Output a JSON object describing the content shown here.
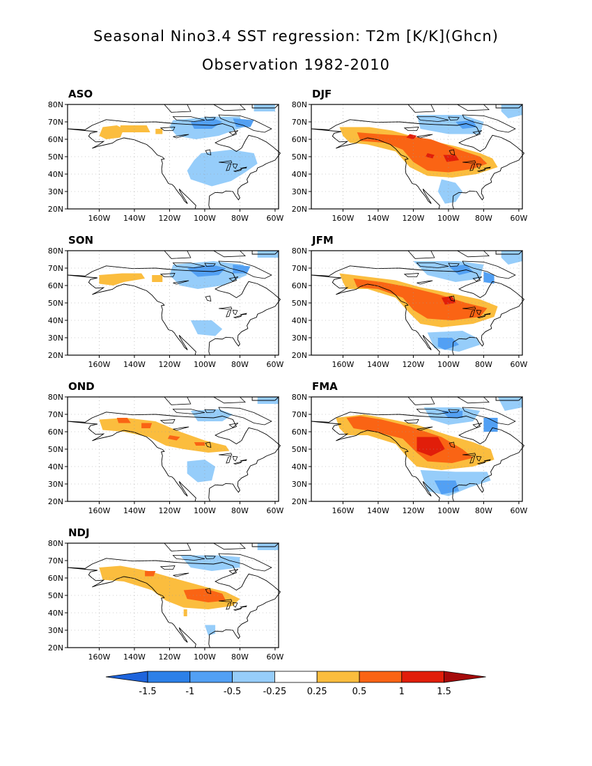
{
  "title": "Seasonal Nino3.4 SST regression: T2m [K/K](Ghcn)",
  "subtitle": "Observation 1982-2010",
  "lat_ticks": [
    "80N",
    "70N",
    "60N",
    "50N",
    "40N",
    "30N",
    "20N"
  ],
  "lon_ticks": [
    "160W",
    "140W",
    "120W",
    "100W",
    "80W",
    "60W"
  ],
  "lat_range": [
    20,
    80
  ],
  "lon_range": [
    -178,
    -58
  ],
  "panels": [
    {
      "id": "ASO",
      "label": "ASO"
    },
    {
      "id": "DJF",
      "label": "DJF"
    },
    {
      "id": "SON",
      "label": "SON"
    },
    {
      "id": "JFM",
      "label": "JFM"
    },
    {
      "id": "OND",
      "label": "OND"
    },
    {
      "id": "FMA",
      "label": "FMA"
    },
    {
      "id": "NDJ",
      "label": "NDJ"
    }
  ],
  "colorbar": {
    "levels": [
      "-1.5",
      "-1",
      "-0.5",
      "-0.25",
      "0.25",
      "0.5",
      "1",
      "1.5"
    ],
    "colors": [
      "#1e64dc",
      "#2c80e8",
      "#52a0f4",
      "#96cdfa",
      "#ffffff",
      "#fbbd3e",
      "#fa6414",
      "#e11e0a",
      "#a50a0a"
    ]
  },
  "colors": {
    "land_outline": "#000000",
    "grid": "#9a9a9a",
    "cool_light": "#96cdfa",
    "cool_mid": "#52a0f4",
    "cool_strong": "#2c80e8",
    "warm_light": "#fbbd3e",
    "warm_mid": "#fa6414",
    "warm_strong": "#e11e0a"
  }
}
